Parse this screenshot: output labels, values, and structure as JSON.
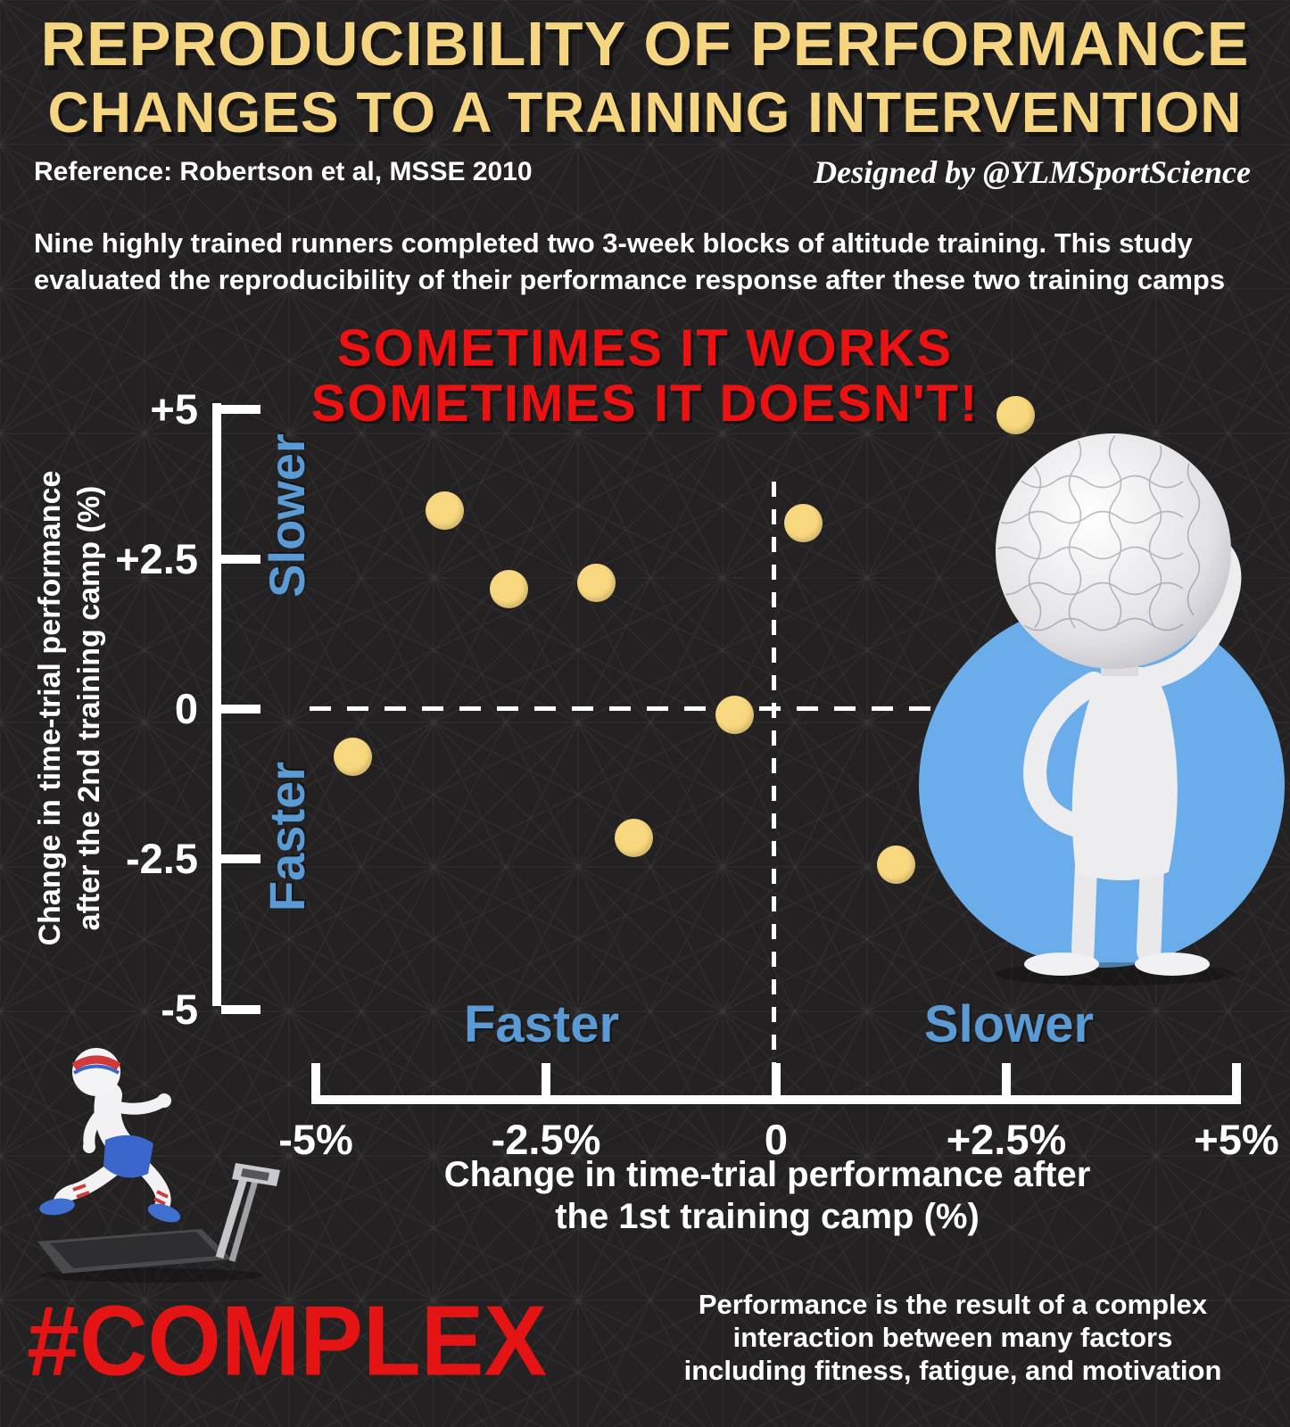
{
  "header": {
    "title_line1": "REPRODUCIBILITY OF PERFORMANCE",
    "title_line2": "CHANGES TO A TRAINING INTERVENTION",
    "reference": "Reference: Robertson et al, MSSE 2010",
    "designed_by": "Designed by @YLMSportScience",
    "intro_line1": "Nine highly trained runners completed two 3-week blocks of altitude training. This study evaluated",
    "intro_line2": "the reproducibility of their performance response after these two training camps"
  },
  "callout": {
    "line1": "SOMETIMES IT WORKS",
    "line2": "SOMETIMES IT DOESN'T!"
  },
  "chart_data": {
    "type": "scatter",
    "title": "",
    "x_axis": {
      "title_line1": "Change in time-trial performance after",
      "title_line2": "the 1st training camp (%)",
      "ticks": [
        "-5%",
        "-2.5%",
        "0",
        "+2.5%",
        "+5%"
      ],
      "tick_values": [
        -5,
        -2.5,
        0,
        2.5,
        5
      ],
      "range": [
        -5,
        5
      ],
      "left_region_label": "Faster",
      "right_region_label": "Slower"
    },
    "y_axis": {
      "title_line1": "Change in time-trial performance",
      "title_line2": "after the 2nd training camp (%)",
      "ticks": [
        "+5",
        "+2.5",
        "0",
        "-2.5",
        "-5"
      ],
      "tick_values": [
        5,
        2.5,
        0,
        -2.5,
        -5
      ],
      "range": [
        -5,
        5
      ],
      "upper_region_label": "Slower",
      "lower_region_label": "Faster"
    },
    "points": [
      {
        "x": 2.6,
        "y": 4.9
      },
      {
        "x": -3.6,
        "y": 3.3
      },
      {
        "x": 0.3,
        "y": 3.1
      },
      {
        "x": -2.9,
        "y": 2.0
      },
      {
        "x": -1.95,
        "y": 2.1
      },
      {
        "x": -0.45,
        "y": -0.1
      },
      {
        "x": -4.6,
        "y": -0.8
      },
      {
        "x": -1.55,
        "y": -2.15
      },
      {
        "x": 1.3,
        "y": -2.6
      }
    ],
    "zero_lines": "dashed",
    "legend": "none"
  },
  "footer": {
    "hashtag": "#COMPLEX",
    "note_line1": "Performance is the result of a complex",
    "note_line2": "interaction between many factors",
    "note_line3": "including fitness, fatigue, and motivation"
  },
  "colors": {
    "background": "#242122",
    "title_yellow": "#f5d57f",
    "accent_red": "#ee1111",
    "label_blue": "#5b9bd5",
    "dot_yellow": "#f8d77e",
    "figure_circle_blue": "#6badea",
    "text_white": "#ffffff"
  }
}
